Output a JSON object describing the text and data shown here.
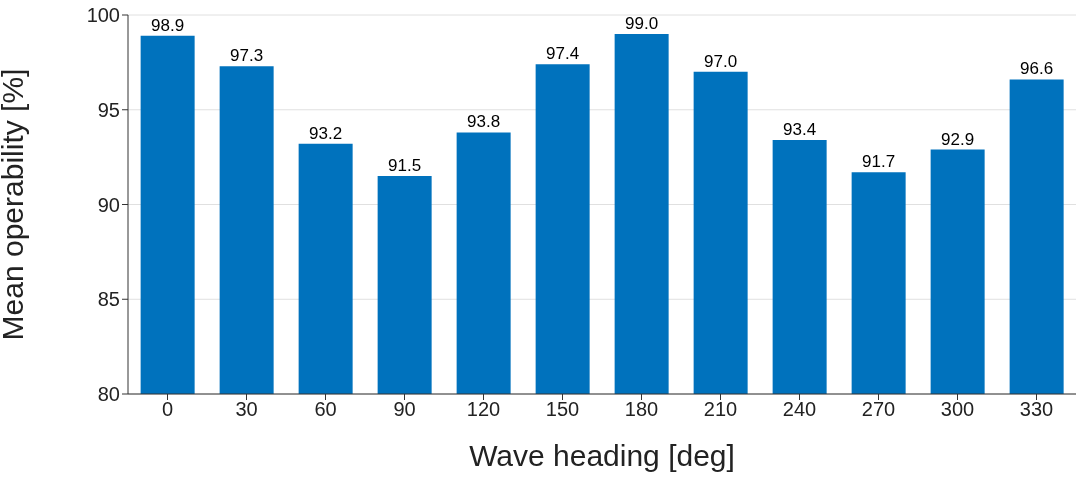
{
  "chart_data": {
    "type": "bar",
    "xlabel": "Wave heading [deg]",
    "ylabel": "Mean operability [%]",
    "categories": [
      "0",
      "30",
      "60",
      "90",
      "120",
      "150",
      "180",
      "210",
      "240",
      "270",
      "300",
      "330"
    ],
    "values": [
      98.9,
      97.3,
      93.2,
      91.5,
      93.8,
      97.4,
      99.0,
      97.0,
      93.4,
      91.7,
      92.9,
      96.6
    ],
    "value_labels": [
      "98.9",
      "97.3",
      "93.2",
      "91.5",
      "93.8",
      "97.4",
      "99.0",
      "97.0",
      "93.4",
      "91.7",
      "92.9",
      "96.6"
    ],
    "color": "#0072bd",
    "ylim": [
      80,
      100
    ],
    "yticks": [
      80,
      85,
      90,
      95,
      100
    ],
    "grid": "y"
  }
}
